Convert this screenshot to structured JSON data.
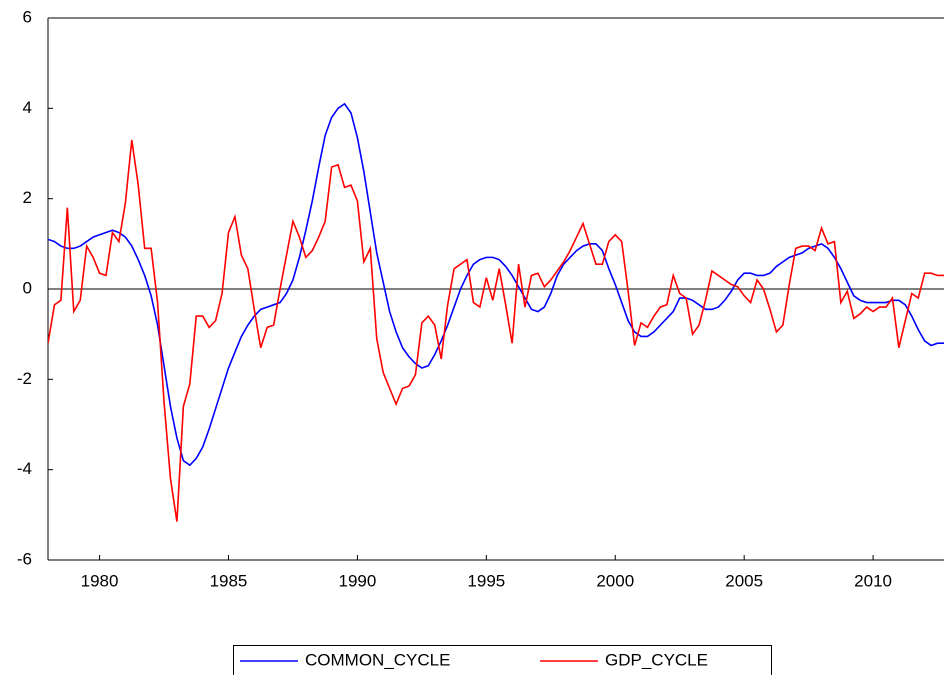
{
  "chart_data": {
    "type": "line",
    "x": [
      1978,
      1978.25,
      1978.5,
      1978.75,
      1979,
      1979.25,
      1979.5,
      1979.75,
      1980,
      1980.25,
      1980.5,
      1980.75,
      1981,
      1981.25,
      1981.5,
      1981.75,
      1982,
      1982.25,
      1982.5,
      1982.75,
      1983,
      1983.25,
      1983.5,
      1983.75,
      1984,
      1984.25,
      1984.5,
      1984.75,
      1985,
      1985.25,
      1985.5,
      1985.75,
      1986,
      1986.25,
      1986.5,
      1986.75,
      1987,
      1987.25,
      1987.5,
      1987.75,
      1988,
      1988.25,
      1988.5,
      1988.75,
      1989,
      1989.25,
      1989.5,
      1989.75,
      1990,
      1990.25,
      1990.5,
      1990.75,
      1991,
      1991.25,
      1991.5,
      1991.75,
      1992,
      1992.25,
      1992.5,
      1992.75,
      1993,
      1993.25,
      1993.5,
      1993.75,
      1994,
      1994.25,
      1994.5,
      1994.75,
      1995,
      1995.25,
      1995.5,
      1995.75,
      1996,
      1996.25,
      1996.5,
      1996.75,
      1997,
      1997.25,
      1997.5,
      1997.75,
      1998,
      1998.25,
      1998.5,
      1998.75,
      1999,
      1999.25,
      1999.5,
      1999.75,
      2000,
      2000.25,
      2000.5,
      2000.75,
      2001,
      2001.25,
      2001.5,
      2001.75,
      2002,
      2002.25,
      2002.5,
      2002.75,
      2003,
      2003.25,
      2003.5,
      2003.75,
      2004,
      2004.25,
      2004.5,
      2004.75,
      2005,
      2005.25,
      2005.5,
      2005.75,
      2006,
      2006.25,
      2006.5,
      2006.75,
      2007,
      2007.25,
      2007.5,
      2007.75,
      2008,
      2008.25,
      2008.5,
      2008.75,
      2009,
      2009.25,
      2009.5,
      2009.75,
      2010,
      2010.25,
      2010.5,
      2010.75,
      2011,
      2011.25,
      2011.5,
      2011.75,
      2012,
      2012.25,
      2012.5,
      2012.75
    ],
    "series": [
      {
        "name": "COMMON_CYCLE",
        "color": "#0000ff",
        "values": [
          1.1,
          1.05,
          0.95,
          0.9,
          0.9,
          0.95,
          1.05,
          1.15,
          1.2,
          1.25,
          1.3,
          1.25,
          1.15,
          0.95,
          0.65,
          0.3,
          -0.15,
          -0.8,
          -1.7,
          -2.6,
          -3.3,
          -3.8,
          -3.9,
          -3.75,
          -3.5,
          -3.1,
          -2.65,
          -2.2,
          -1.75,
          -1.4,
          -1.05,
          -0.8,
          -0.6,
          -0.45,
          -0.4,
          -0.35,
          -0.3,
          -0.1,
          0.2,
          0.7,
          1.3,
          1.95,
          2.7,
          3.4,
          3.8,
          4.0,
          4.1,
          3.9,
          3.35,
          2.6,
          1.7,
          0.8,
          0.15,
          -0.5,
          -0.95,
          -1.3,
          -1.5,
          -1.65,
          -1.75,
          -1.7,
          -1.45,
          -1.15,
          -0.8,
          -0.4,
          0.0,
          0.3,
          0.55,
          0.65,
          0.7,
          0.7,
          0.65,
          0.5,
          0.3,
          0.05,
          -0.2,
          -0.45,
          -0.5,
          -0.4,
          -0.1,
          0.3,
          0.55,
          0.7,
          0.85,
          0.95,
          1.0,
          1.0,
          0.85,
          0.45,
          0.1,
          -0.3,
          -0.7,
          -0.95,
          -1.05,
          -1.05,
          -0.95,
          -0.8,
          -0.65,
          -0.5,
          -0.2,
          -0.2,
          -0.25,
          -0.35,
          -0.45,
          -0.45,
          -0.4,
          -0.25,
          -0.05,
          0.2,
          0.35,
          0.35,
          0.3,
          0.3,
          0.35,
          0.5,
          0.6,
          0.7,
          0.75,
          0.8,
          0.9,
          0.95,
          1.0,
          0.9,
          0.7,
          0.45,
          0.15,
          -0.15,
          -0.25,
          -0.3,
          -0.3,
          -0.3,
          -0.3,
          -0.25,
          -0.25,
          -0.35,
          -0.6,
          -0.9,
          -1.15,
          -1.25,
          -1.2,
          -1.2
        ]
      },
      {
        "name": "GDP_CYCLE",
        "color": "#ff0000",
        "values": [
          -1.2,
          -0.35,
          -0.25,
          1.8,
          -0.5,
          -0.25,
          0.95,
          0.7,
          0.35,
          0.3,
          1.25,
          1.05,
          1.9,
          3.3,
          2.3,
          0.9,
          0.9,
          -0.3,
          -2.5,
          -4.2,
          -5.15,
          -2.6,
          -2.1,
          -0.6,
          -0.6,
          -0.85,
          -0.7,
          -0.1,
          1.25,
          1.6,
          0.75,
          0.45,
          -0.45,
          -1.3,
          -0.85,
          -0.8,
          0.0,
          0.75,
          1.5,
          1.15,
          0.7,
          0.85,
          1.15,
          1.5,
          2.7,
          2.75,
          2.25,
          2.3,
          1.95,
          0.6,
          0.9,
          -1.1,
          -1.85,
          -2.2,
          -2.55,
          -2.2,
          -2.15,
          -1.9,
          -0.75,
          -0.6,
          -0.8,
          -1.55,
          -0.35,
          0.45,
          0.55,
          0.65,
          -0.3,
          -0.4,
          0.25,
          -0.25,
          0.45,
          -0.35,
          -1.2,
          0.55,
          -0.4,
          0.3,
          0.35,
          0.05,
          0.2,
          0.4,
          0.6,
          0.85,
          1.15,
          1.45,
          1.0,
          0.55,
          0.55,
          1.05,
          1.2,
          1.05,
          -0.05,
          -1.25,
          -0.75,
          -0.85,
          -0.6,
          -0.4,
          -0.35,
          0.3,
          -0.1,
          -0.2,
          -1.0,
          -0.8,
          -0.25,
          0.4,
          0.3,
          0.2,
          0.1,
          0.05,
          -0.15,
          -0.3,
          0.2,
          0.0,
          -0.45,
          -0.95,
          -0.8,
          0.1,
          0.9,
          0.95,
          0.95,
          0.85,
          1.35,
          1.0,
          1.05,
          -0.3,
          -0.05,
          -0.65,
          -0.55,
          -0.4,
          -0.5,
          -0.4,
          -0.4,
          -0.2,
          -1.3,
          -0.7,
          -0.1,
          -0.2,
          0.35,
          0.35,
          0.3,
          0.3
        ]
      }
    ],
    "xlim": [
      1978,
      2012.75
    ],
    "xticks": [
      1980,
      1985,
      1990,
      1995,
      2000,
      2005,
      2010
    ],
    "ylim": [
      -6,
      6
    ],
    "yticks": [
      -6,
      -4,
      -2,
      0,
      2,
      4,
      6
    ],
    "zero_line": true
  }
}
